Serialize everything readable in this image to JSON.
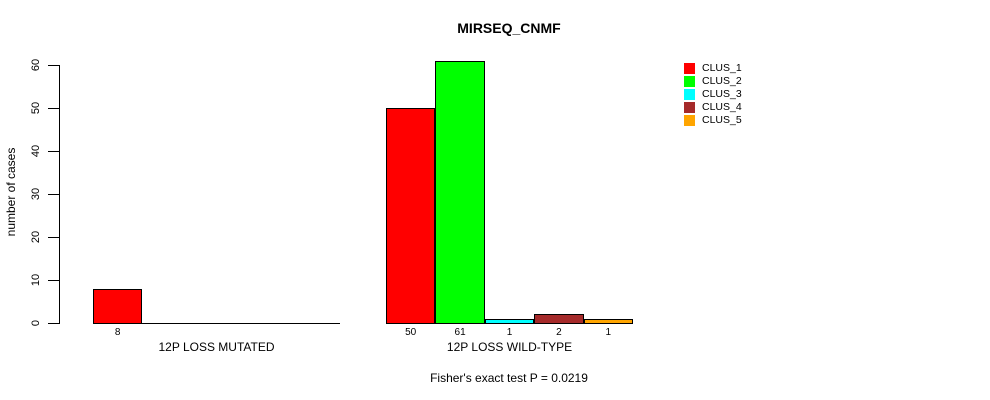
{
  "figure": {
    "background": "#ffffff",
    "text_color": "#000000"
  },
  "chart_data": {
    "type": "bar",
    "title": "MIRSEQ_CNMF",
    "xlabel": "",
    "ylabel": "number of cases",
    "ylim": [
      0,
      60
    ],
    "yticks": [
      0,
      10,
      20,
      30,
      40,
      50,
      60
    ],
    "grid": false,
    "legend_position": "right",
    "annotation": "Fisher's exact test P = 0.0219",
    "categories": [
      "12P LOSS MUTATED",
      "12P LOSS WILD-TYPE"
    ],
    "series": [
      {
        "name": "CLUS_1",
        "color": "#FF0000",
        "values": [
          8,
          50
        ]
      },
      {
        "name": "CLUS_2",
        "color": "#00FF00",
        "values": [
          0,
          61
        ]
      },
      {
        "name": "CLUS_3",
        "color": "#00FFFF",
        "values": [
          0,
          1
        ]
      },
      {
        "name": "CLUS_4",
        "color": "#A52A2A",
        "values": [
          0,
          2
        ]
      },
      {
        "name": "CLUS_5",
        "color": "#FFA500",
        "values": [
          0,
          1
        ]
      }
    ],
    "value_labels_shown": [
      "8",
      "50",
      "61",
      "1",
      "2",
      "1"
    ]
  },
  "legend": {
    "items": [
      {
        "label": "CLUS_1",
        "color": "#FF0000"
      },
      {
        "label": "CLUS_2",
        "color": "#00FF00"
      },
      {
        "label": "CLUS_3",
        "color": "#00FFFF"
      },
      {
        "label": "CLUS_4",
        "color": "#A52A2A"
      },
      {
        "label": "CLUS_5",
        "color": "#FFA500"
      }
    ]
  }
}
